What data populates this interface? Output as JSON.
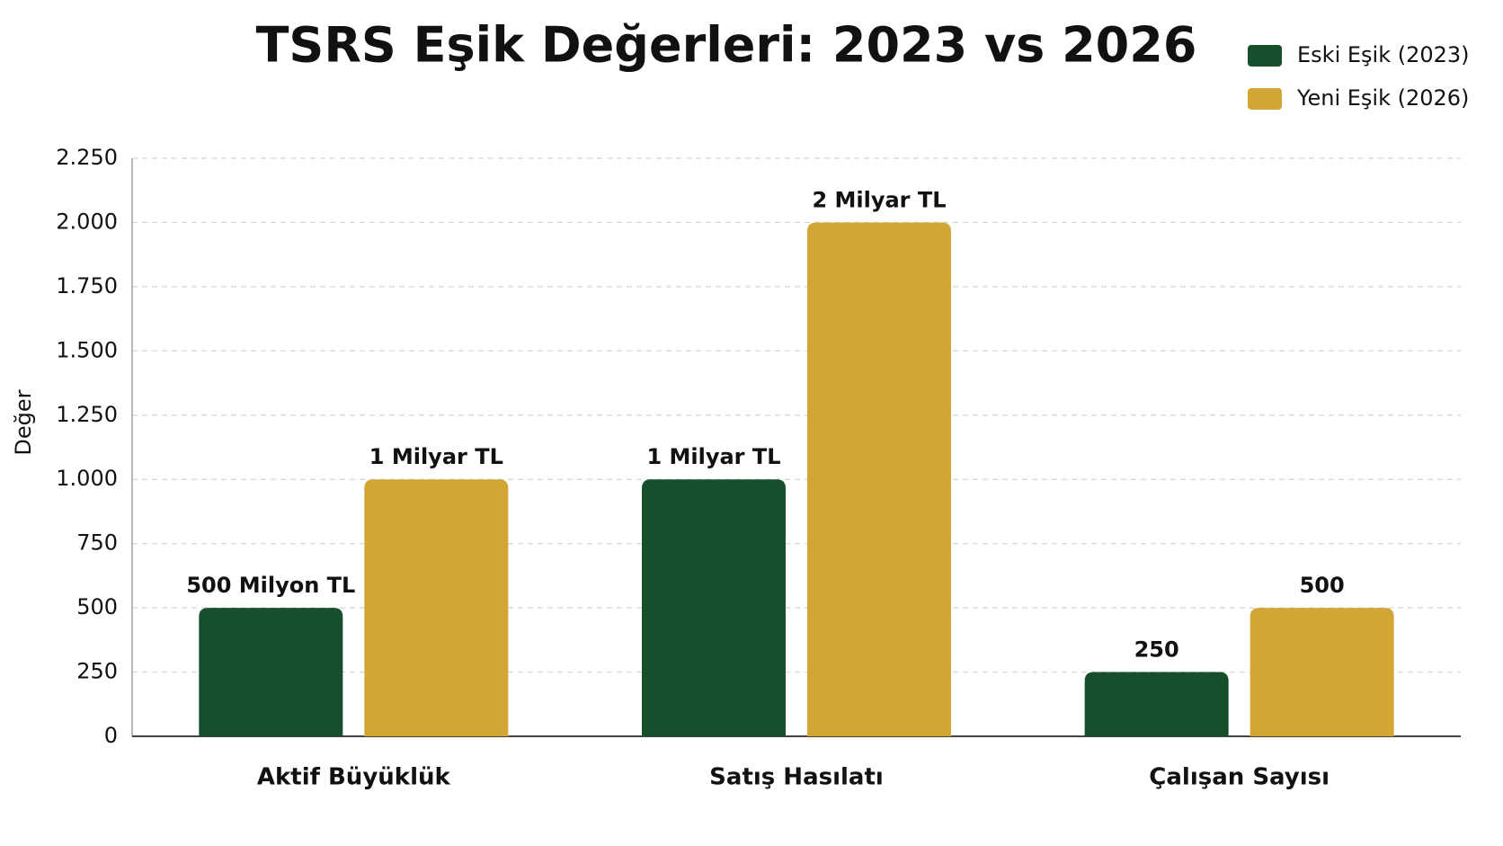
{
  "chart_data": {
    "type": "bar",
    "title": "TSRS Eşik Değerleri: 2023 vs 2026",
    "y_label": "Değer",
    "categories": [
      "Aktif Büyüklük",
      "Satış Hasılatı",
      "Çalışan Sayısı"
    ],
    "series": [
      {
        "name": "Eski Eşik (2023)",
        "color": "#174f2c",
        "values": [
          500,
          1000,
          250
        ],
        "value_labels": [
          "500 Milyon TL",
          "1 Milyar TL",
          "250"
        ]
      },
      {
        "name": "Yeni Eşik (2026)",
        "color": "#d2a634",
        "values": [
          1000,
          2000,
          500
        ],
        "value_labels": [
          "1 Milyar TL",
          "2 Milyar TL",
          "500"
        ]
      }
    ],
    "ylim": [
      0,
      2250
    ],
    "yticks": [
      0,
      250,
      500,
      750,
      {
        "value": 1000,
        "label": "1.000"
      },
      {
        "value": 1250,
        "label": "1.250"
      },
      {
        "value": 1500,
        "label": "1.500"
      },
      {
        "value": 1750,
        "label": "1.750"
      },
      {
        "value": 2000,
        "label": "2.000"
      },
      {
        "value": 2250,
        "label": "2.250"
      }
    ],
    "grid": true,
    "legend": "top-right"
  }
}
